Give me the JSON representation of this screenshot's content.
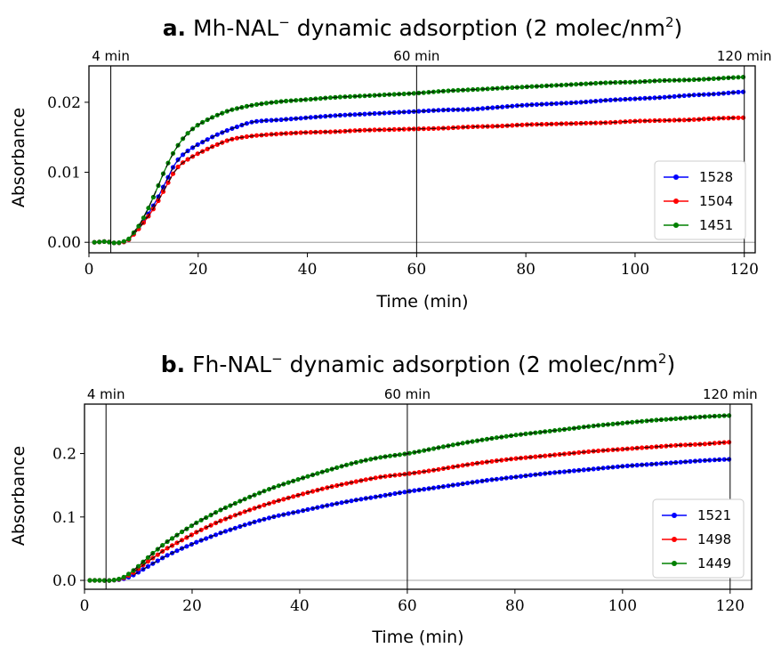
{
  "chart_data": [
    {
      "type": "line",
      "panel_letter": "a.",
      "title_main": "Mh-NAL",
      "title_sup": "−",
      "title_rest": " dynamic adsorption (2 molec/nm",
      "title_sup2": "2",
      "title_end": ")",
      "xlabel": "Time (min)",
      "ylabel": "Absorbance",
      "xlim": [
        0,
        122
      ],
      "ylim": [
        -0.0015,
        0.0252
      ],
      "xticks": [
        0,
        20,
        40,
        60,
        80,
        100,
        120
      ],
      "xtick_labels": [
        "0",
        "20",
        "40",
        "60",
        "80",
        "100",
        "120"
      ],
      "yticks": [
        0,
        0.01,
        0.02
      ],
      "ytick_labels": [
        "0.00",
        "0.01",
        "0.02"
      ],
      "vlines": [
        {
          "x": 4,
          "label": "4 min"
        },
        {
          "x": 60,
          "label": "60 min"
        },
        {
          "x": 120,
          "label": "120 min"
        }
      ],
      "grid": false,
      "legend_position": "lower-right",
      "series": [
        {
          "name": "1528",
          "color": "#0000ff",
          "x": [
            1,
            3,
            5,
            7,
            8,
            10,
            12,
            14,
            16,
            18,
            20,
            23,
            26,
            30,
            35,
            40,
            45,
            50,
            55,
            60,
            65,
            70,
            75,
            80,
            85,
            90,
            95,
            100,
            105,
            110,
            115,
            120
          ],
          "y": [
            0.0,
            0.0001,
            -0.0001,
            0.0002,
            0.001,
            0.003,
            0.0055,
            0.0085,
            0.0115,
            0.013,
            0.014,
            0.0152,
            0.0162,
            0.0172,
            0.0175,
            0.0178,
            0.0181,
            0.0183,
            0.0185,
            0.0187,
            0.0189,
            0.019,
            0.0193,
            0.0196,
            0.0198,
            0.02,
            0.0203,
            0.0205,
            0.0207,
            0.021,
            0.0212,
            0.0215
          ]
        },
        {
          "name": "1504",
          "color": "#ff0000",
          "x": [
            1,
            3,
            5,
            7,
            8,
            10,
            12,
            14,
            16,
            18,
            20,
            23,
            26,
            30,
            35,
            40,
            45,
            50,
            55,
            60,
            65,
            70,
            75,
            80,
            85,
            90,
            95,
            100,
            105,
            110,
            115,
            120
          ],
          "y": [
            0.0,
            0.0001,
            -0.0001,
            0.0002,
            0.001,
            0.0028,
            0.005,
            0.0078,
            0.0105,
            0.0118,
            0.0127,
            0.0138,
            0.0147,
            0.0152,
            0.0155,
            0.0157,
            0.0158,
            0.016,
            0.0161,
            0.0162,
            0.0163,
            0.0165,
            0.0166,
            0.0168,
            0.0169,
            0.017,
            0.0171,
            0.0173,
            0.0174,
            0.0175,
            0.0177,
            0.0178
          ]
        },
        {
          "name": "1451",
          "color": "#008000",
          "x": [
            1,
            3,
            5,
            7,
            8,
            10,
            12,
            14,
            16,
            18,
            20,
            23,
            26,
            30,
            35,
            40,
            45,
            50,
            55,
            60,
            65,
            70,
            75,
            80,
            85,
            90,
            95,
            100,
            105,
            110,
            115,
            120
          ],
          "y": [
            0.0,
            0.0001,
            -0.0001,
            0.0003,
            0.0012,
            0.0035,
            0.0068,
            0.0105,
            0.0135,
            0.0155,
            0.0168,
            0.018,
            0.0189,
            0.0196,
            0.0201,
            0.0204,
            0.0207,
            0.0209,
            0.0211,
            0.0213,
            0.0216,
            0.0218,
            0.022,
            0.0222,
            0.0224,
            0.0226,
            0.0228,
            0.0229,
            0.0231,
            0.0232,
            0.0234,
            0.0236
          ]
        }
      ]
    },
    {
      "type": "line",
      "panel_letter": "b.",
      "title_main": "Fh-NAL",
      "title_sup": "−",
      "title_rest": " dynamic adsorption (2 molec/nm",
      "title_sup2": "2",
      "title_end": ")",
      "xlabel": "Time (min)",
      "ylabel": "Absorbance",
      "xlim": [
        0,
        124
      ],
      "ylim": [
        -0.014,
        0.278
      ],
      "xticks": [
        0,
        20,
        40,
        60,
        80,
        100,
        120
      ],
      "xtick_labels": [
        "0",
        "20",
        "40",
        "60",
        "80",
        "100",
        "120"
      ],
      "yticks": [
        0,
        0.1,
        0.2
      ],
      "ytick_labels": [
        "0.0",
        "0.1",
        "0.2"
      ],
      "vlines": [
        {
          "x": 4,
          "label": "4 min"
        },
        {
          "x": 60,
          "label": "60 min"
        },
        {
          "x": 120,
          "label": "120 min"
        }
      ],
      "grid": false,
      "legend_position": "lower-right",
      "series": [
        {
          "name": "1521",
          "color": "#0000ff",
          "x": [
            1,
            3,
            5,
            7,
            9,
            11,
            13,
            15,
            18,
            21,
            25,
            30,
            35,
            40,
            45,
            50,
            55,
            60,
            65,
            70,
            75,
            80,
            85,
            90,
            95,
            100,
            105,
            110,
            115,
            120
          ],
          "y": [
            0.0,
            0.0,
            0.0,
            0.002,
            0.008,
            0.018,
            0.028,
            0.038,
            0.05,
            0.061,
            0.074,
            0.088,
            0.1,
            0.109,
            0.118,
            0.126,
            0.133,
            0.14,
            0.146,
            0.152,
            0.158,
            0.163,
            0.168,
            0.172,
            0.176,
            0.18,
            0.183,
            0.186,
            0.189,
            0.191
          ]
        },
        {
          "name": "1498",
          "color": "#ff0000",
          "x": [
            1,
            3,
            5,
            7,
            9,
            11,
            13,
            15,
            18,
            21,
            25,
            30,
            35,
            40,
            45,
            50,
            55,
            60,
            65,
            70,
            75,
            80,
            85,
            90,
            95,
            100,
            105,
            110,
            115,
            120
          ],
          "y": [
            0.0,
            0.0,
            0.0,
            0.003,
            0.012,
            0.025,
            0.037,
            0.049,
            0.063,
            0.077,
            0.093,
            0.109,
            0.123,
            0.135,
            0.146,
            0.155,
            0.163,
            0.168,
            0.174,
            0.181,
            0.187,
            0.192,
            0.196,
            0.2,
            0.204,
            0.207,
            0.21,
            0.213,
            0.215,
            0.218
          ]
        },
        {
          "name": "1449",
          "color": "#008000",
          "x": [
            1,
            3,
            5,
            7,
            9,
            11,
            13,
            15,
            18,
            21,
            25,
            30,
            35,
            40,
            45,
            50,
            55,
            60,
            65,
            70,
            75,
            80,
            85,
            90,
            95,
            100,
            105,
            110,
            115,
            120
          ],
          "y": [
            0.0,
            0.0,
            0.0,
            0.004,
            0.015,
            0.03,
            0.045,
            0.059,
            0.076,
            0.092,
            0.11,
            0.129,
            0.146,
            0.16,
            0.173,
            0.185,
            0.194,
            0.2,
            0.208,
            0.216,
            0.223,
            0.229,
            0.234,
            0.239,
            0.244,
            0.248,
            0.252,
            0.255,
            0.258,
            0.26
          ]
        }
      ]
    }
  ]
}
